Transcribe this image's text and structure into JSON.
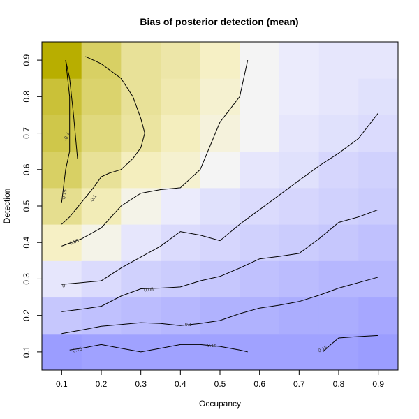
{
  "chart_data": {
    "type": "heatmap",
    "title": "Bias of posterior detection (mean)",
    "xlabel": "Occupancy",
    "ylabel": "Detection",
    "x": [
      0.1,
      0.2,
      0.3,
      0.4,
      0.5,
      0.6,
      0.7,
      0.8,
      0.9
    ],
    "y": [
      0.1,
      0.2,
      0.3,
      0.4,
      0.5,
      0.6,
      0.7,
      0.8,
      0.9
    ],
    "xlim": [
      0.05,
      0.95
    ],
    "ylim": [
      0.05,
      0.95
    ],
    "xticks": [
      "0.1",
      "0.2",
      "0.3",
      "0.4",
      "0.5",
      "0.6",
      "0.7",
      "0.8",
      "0.9"
    ],
    "yticks": [
      "0.1",
      "0.2",
      "0.3",
      "0.4",
      "0.5",
      "0.6",
      "0.7",
      "0.8",
      "0.9"
    ],
    "z": [
      [
        0.16,
        0.15,
        0.15,
        0.15,
        0.15,
        0.15,
        0.15,
        0.15,
        0.16
      ],
      [
        0.08,
        0.09,
        0.1,
        0.11,
        0.12,
        0.12,
        0.13,
        0.13,
        0.14
      ],
      [
        0.02,
        0.04,
        0.06,
        0.07,
        0.08,
        0.09,
        0.1,
        0.11,
        0.11
      ],
      [
        -0.04,
        -0.01,
        0.02,
        0.04,
        0.05,
        0.06,
        0.07,
        0.08,
        0.09
      ],
      [
        -0.11,
        -0.06,
        -0.01,
        0.01,
        0.03,
        0.04,
        0.05,
        0.06,
        0.07
      ],
      [
        -0.16,
        -0.1,
        -0.05,
        -0.03,
        0.0,
        0.02,
        0.03,
        0.05,
        0.06
      ],
      [
        -0.19,
        -0.13,
        -0.09,
        -0.05,
        -0.02,
        0.0,
        0.02,
        0.03,
        0.04
      ],
      [
        -0.21,
        -0.15,
        -0.1,
        -0.07,
        -0.03,
        0.0,
        0.01,
        0.02,
        0.03
      ],
      [
        -0.27,
        -0.16,
        -0.1,
        -0.08,
        -0.04,
        0.0,
        0.01,
        0.02,
        0.02
      ]
    ],
    "color_scale": {
      "negative_max": "#b8ae00",
      "zero": "#f4f4f4",
      "positive_max": "#9b9dff",
      "range": [
        -0.27,
        0.16
      ]
    },
    "contours": [
      {
        "level": "-0.2",
        "label": "-0.2",
        "x": [
          0.11,
          0.12,
          0.13,
          0.14
        ],
        "y": [
          0.9,
          0.85,
          0.75,
          0.63
        ]
      },
      {
        "level": "-0.15",
        "label": "-0.15",
        "x": [
          0.1,
          0.11,
          0.12,
          0.12,
          0.12,
          0.12,
          0.11
        ],
        "y": [
          0.51,
          0.6,
          0.65,
          0.7,
          0.75,
          0.8,
          0.9
        ]
      },
      {
        "level": "-0.1",
        "label": "-0.1",
        "x": [
          0.1,
          0.12,
          0.15,
          0.18,
          0.2,
          0.22,
          0.25,
          0.28,
          0.3,
          0.31,
          0.3,
          0.28,
          0.25,
          0.2,
          0.18,
          0.16
        ],
        "y": [
          0.45,
          0.47,
          0.51,
          0.55,
          0.58,
          0.59,
          0.6,
          0.63,
          0.66,
          0.7,
          0.74,
          0.8,
          0.85,
          0.89,
          0.9,
          0.91
        ]
      },
      {
        "level": "-0.05",
        "label": "-0.05",
        "x": [
          0.1,
          0.15,
          0.2,
          0.25,
          0.3,
          0.35,
          0.4,
          0.45,
          0.5,
          0.55,
          0.57
        ],
        "y": [
          0.39,
          0.41,
          0.44,
          0.5,
          0.535,
          0.545,
          0.55,
          0.6,
          0.73,
          0.8,
          0.9
        ]
      },
      {
        "level": "0",
        "label": "0",
        "x": [
          0.1,
          0.15,
          0.2,
          0.25,
          0.3,
          0.35,
          0.4,
          0.45,
          0.5,
          0.55,
          0.6,
          0.65,
          0.7,
          0.75,
          0.8,
          0.85,
          0.9
        ],
        "y": [
          0.285,
          0.29,
          0.295,
          0.33,
          0.36,
          0.39,
          0.43,
          0.42,
          0.405,
          0.45,
          0.49,
          0.53,
          0.57,
          0.61,
          0.645,
          0.685,
          0.755
        ]
      },
      {
        "level": "0.05",
        "label": "0.05",
        "x": [
          0.1,
          0.15,
          0.2,
          0.25,
          0.3,
          0.35,
          0.4,
          0.45,
          0.5,
          0.55,
          0.6,
          0.65,
          0.7,
          0.75,
          0.8,
          0.85,
          0.9
        ],
        "y": [
          0.21,
          0.217,
          0.225,
          0.253,
          0.273,
          0.275,
          0.278,
          0.295,
          0.307,
          0.33,
          0.355,
          0.362,
          0.37,
          0.41,
          0.455,
          0.47,
          0.49
        ]
      },
      {
        "level": "0.1",
        "label": "0.1",
        "x": [
          0.1,
          0.15,
          0.2,
          0.25,
          0.3,
          0.35,
          0.4,
          0.45,
          0.5,
          0.55,
          0.6,
          0.65,
          0.7,
          0.75,
          0.8,
          0.85,
          0.9
        ],
        "y": [
          0.15,
          0.16,
          0.17,
          0.175,
          0.18,
          0.178,
          0.172,
          0.178,
          0.186,
          0.205,
          0.22,
          0.228,
          0.238,
          0.255,
          0.275,
          0.29,
          0.305
        ]
      },
      {
        "level": "0.15",
        "label": "0.15",
        "x": [
          0.12,
          0.15,
          0.2,
          0.25,
          0.3,
          0.35,
          0.4,
          0.45,
          0.5,
          0.55,
          0.57
        ],
        "y": [
          0.105,
          0.11,
          0.12,
          0.11,
          0.1,
          0.11,
          0.12,
          0.12,
          0.115,
          0.105,
          0.1
        ]
      },
      {
        "level": "0.15",
        "label": "0.15",
        "x": [
          0.76,
          0.78,
          0.8,
          0.85,
          0.9
        ],
        "y": [
          0.1,
          0.12,
          0.138,
          0.142,
          0.145
        ]
      }
    ],
    "contour_labels": [
      {
        "text": "-0.2",
        "x": 0.113,
        "y": 0.69,
        "angle": -70
      },
      {
        "text": "-0.15",
        "x": 0.107,
        "y": 0.53,
        "angle": -80
      },
      {
        "text": "-0.1",
        "x": 0.18,
        "y": 0.52,
        "angle": -55
      },
      {
        "text": "-0.05",
        "x": 0.13,
        "y": 0.4,
        "angle": -20
      },
      {
        "text": "0",
        "x": 0.105,
        "y": 0.28,
        "angle": 0
      },
      {
        "text": "0.05",
        "x": 0.32,
        "y": 0.27,
        "angle": -5
      },
      {
        "text": "0.1",
        "x": 0.42,
        "y": 0.174,
        "angle": 0
      },
      {
        "text": "0.15",
        "x": 0.14,
        "y": 0.105,
        "angle": -15
      },
      {
        "text": "0.15",
        "x": 0.48,
        "y": 0.117,
        "angle": 0
      },
      {
        "text": "0.15",
        "x": 0.76,
        "y": 0.107,
        "angle": -25
      }
    ],
    "grid": false,
    "legend": "none"
  }
}
